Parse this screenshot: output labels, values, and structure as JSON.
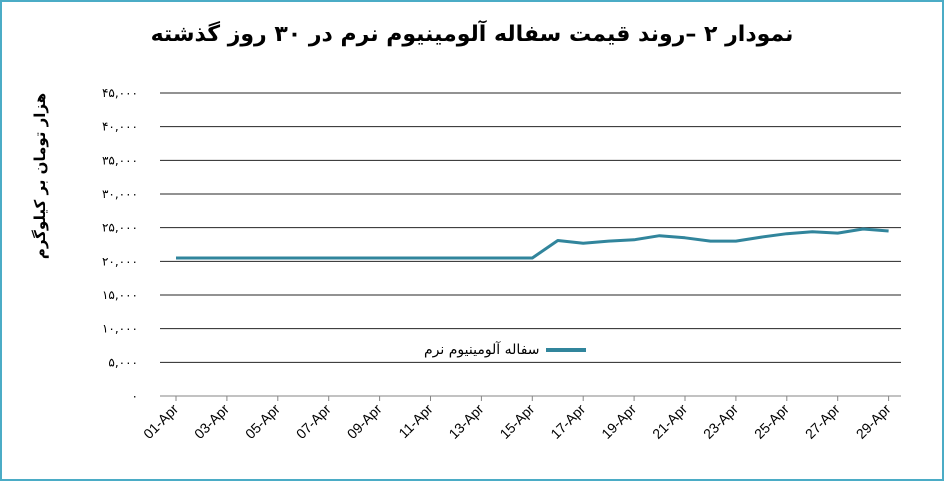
{
  "chart_data": {
    "type": "line",
    "title": "نمودار ۲ –روند قیمت سفاله آلومینیوم نرم در ۳۰ روز گذشته",
    "ylabel": "هزار تومان بر کیلوگرم",
    "xlabel": "",
    "ylim": [
      0,
      45000
    ],
    "y_ticks": [
      "۰",
      "۵,۰۰۰",
      "۱۰,۰۰۰",
      "۱۵,۰۰۰",
      "۲۰,۰۰۰",
      "۲۵,۰۰۰",
      "۳۰,۰۰۰",
      "۳۵,۰۰۰",
      "۴۰,۰۰۰",
      "۴۵,۰۰۰"
    ],
    "y_tick_values": [
      0,
      5000,
      10000,
      15000,
      20000,
      25000,
      30000,
      35000,
      40000,
      45000
    ],
    "categories": [
      "01-Apr",
      "03-Apr",
      "05-Apr",
      "07-Apr",
      "09-Apr",
      "11-Apr",
      "13-Apr",
      "15-Apr",
      "17-Apr",
      "19-Apr",
      "21-Apr",
      "23-Apr",
      "25-Apr",
      "27-Apr",
      "29-Apr"
    ],
    "grid": true,
    "legend_position": "inside-bottom-center",
    "series": [
      {
        "name": "سفاله آلومینیوم نرم",
        "color": "#31859c",
        "x": [
          "01-Apr",
          "02-Apr",
          "03-Apr",
          "04-Apr",
          "05-Apr",
          "06-Apr",
          "07-Apr",
          "08-Apr",
          "09-Apr",
          "10-Apr",
          "11-Apr",
          "12-Apr",
          "13-Apr",
          "14-Apr",
          "15-Apr",
          "16-Apr",
          "17-Apr",
          "18-Apr",
          "19-Apr",
          "20-Apr",
          "21-Apr",
          "22-Apr",
          "23-Apr",
          "24-Apr",
          "25-Apr",
          "26-Apr",
          "27-Apr",
          "28-Apr",
          "29-Apr"
        ],
        "values": [
          20500,
          20500,
          20500,
          20500,
          20500,
          20500,
          20500,
          20500,
          20500,
          20500,
          20500,
          20500,
          20500,
          20500,
          20500,
          23100,
          22700,
          23000,
          23200,
          23800,
          23500,
          23000,
          23000,
          23600,
          24100,
          24400,
          24200,
          24800,
          24500
        ]
      }
    ]
  }
}
